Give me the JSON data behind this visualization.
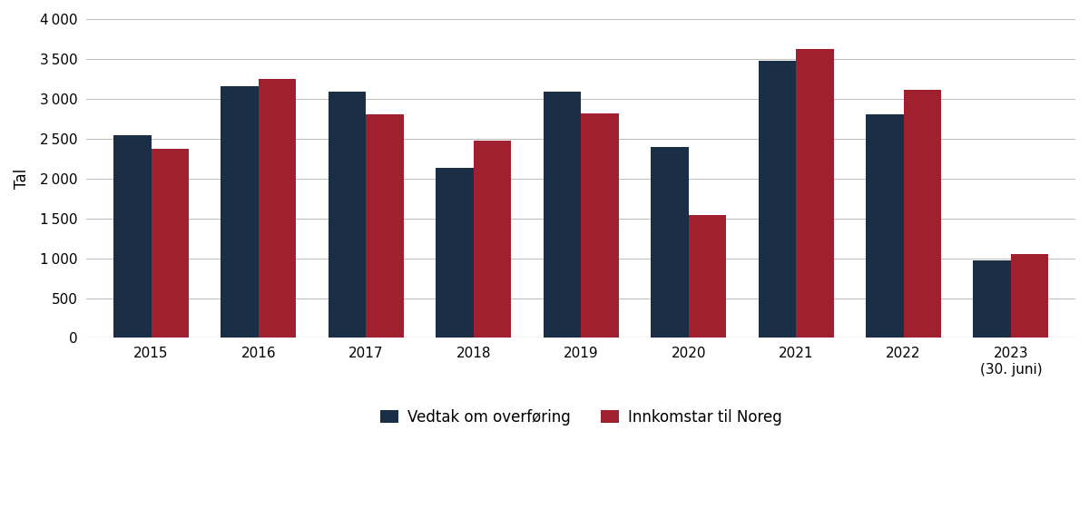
{
  "years": [
    "2015",
    "2016",
    "2017",
    "2018",
    "2019",
    "2020",
    "2021",
    "2022",
    "2023\n(30. juni)"
  ],
  "vedtak": [
    2540,
    3160,
    3090,
    2130,
    3090,
    2390,
    3480,
    2810,
    970
  ],
  "innkomstar": [
    2370,
    3250,
    2810,
    2480,
    2820,
    1540,
    3630,
    3110,
    1050
  ],
  "color_vedtak": "#1a2e45",
  "color_innkomstar": "#a02030",
  "ylabel": "Tal",
  "ylim": [
    0,
    4000
  ],
  "yticks": [
    0,
    500,
    1000,
    1500,
    2000,
    2500,
    3000,
    3500,
    4000
  ],
  "legend_vedtak": "Vedtak om overføring",
  "legend_innkomstar": "Innkomstar til Noreg",
  "bar_width": 0.35,
  "background_color": "#ffffff",
  "grid_color": "#bbbbbb",
  "tick_fontsize": 11,
  "label_fontsize": 12
}
